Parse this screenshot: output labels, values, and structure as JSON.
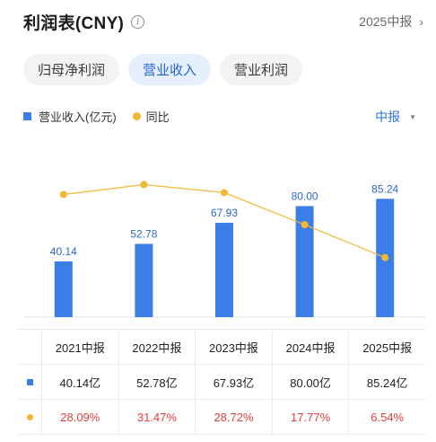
{
  "header": {
    "title": "利润表(CNY)",
    "info_icon": "info-icon",
    "period_label": "2025中报"
  },
  "tabs": [
    {
      "label": "归母净利润",
      "active": false
    },
    {
      "label": "营业收入",
      "active": true
    },
    {
      "label": "营业利润",
      "active": false
    }
  ],
  "legend": {
    "bar_label": "营业收入(亿元)",
    "line_label": "同比"
  },
  "range_select": "中报",
  "colors": {
    "bar": "#3b7ee8",
    "line": "#f3b733",
    "accent": "#1e64d9",
    "negative_text": "#e63d3d"
  },
  "chart_data": {
    "type": "bar",
    "categories": [
      "2021中报",
      "2022中报",
      "2023中报",
      "2024中报",
      "2025中报"
    ],
    "series": [
      {
        "name": "营业收入(亿元)",
        "type": "bar",
        "values": [
          40.14,
          52.78,
          67.93,
          80.0,
          85.24
        ],
        "labels": [
          "40.14",
          "52.78",
          "67.93",
          "80.00",
          "85.24"
        ]
      },
      {
        "name": "同比",
        "type": "line",
        "values": [
          28.09,
          31.47,
          28.72,
          17.77,
          6.54
        ]
      }
    ]
  },
  "table": {
    "headers": [
      "2021中报",
      "2022中报",
      "2023中报",
      "2024中报",
      "2025中报"
    ],
    "revenue_row": [
      "40.14亿",
      "52.78亿",
      "67.93亿",
      "80.00亿",
      "85.24亿"
    ],
    "yoy_row": [
      "28.09%",
      "31.47%",
      "28.72%",
      "17.77%",
      "6.54%"
    ]
  }
}
